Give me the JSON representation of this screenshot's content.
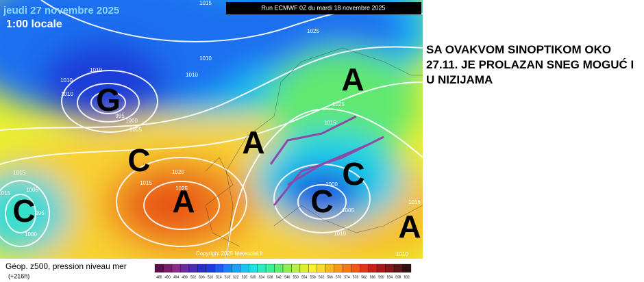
{
  "header": {
    "date": "jeudi 27 novembre 2025",
    "time": "1:00 locale",
    "run": "Run ECMWF 0Z du mardi 18 novembre 2025"
  },
  "note": "SA OVAKVOM SINOPTIKOM OKO 27.11. JE PROLAZAN SNEG MOGUĆ I U NIZIJAMA",
  "centers": [
    "G",
    "C",
    "A",
    "A",
    "C",
    "C",
    "A",
    "C",
    "A"
  ],
  "isobars": [
    "1010",
    "1010",
    "1010",
    "1010",
    "1010",
    "995",
    "1000",
    "1005",
    "1015",
    "1020",
    "1025",
    "1015",
    "1025",
    "1025",
    "1015",
    "1000",
    "1005",
    "1010",
    "1005",
    "995",
    "1000",
    "1015",
    "1015",
    "1010",
    "1015"
  ],
  "copyright": "Copyright 2025 Meteociel.fr",
  "legend": {
    "title": "Géop. z500, pression niveau mer",
    "lead": "(+216h)",
    "labels": [
      486,
      490,
      494,
      498,
      502,
      506,
      510,
      514,
      518,
      522,
      526,
      530,
      534,
      538,
      542,
      546,
      550,
      554,
      558,
      562,
      566,
      570,
      574,
      578,
      582,
      586,
      590,
      594,
      598,
      602
    ],
    "colors": [
      "#5a0f4a",
      "#7a1c6e",
      "#8a2c8a",
      "#6a2c9a",
      "#4a2cb0",
      "#2c2cc8",
      "#1c3ce0",
      "#1c5cf0",
      "#1c80f8",
      "#1ca0f8",
      "#1cc4f4",
      "#1ce0e8",
      "#2cecc0",
      "#3cf098",
      "#5cf070",
      "#8cf050",
      "#b4f040",
      "#dcf030",
      "#f8f030",
      "#f8d828",
      "#f8b820",
      "#f89818",
      "#f87818",
      "#f05818",
      "#e03818",
      "#c82018",
      "#a81818",
      "#801818",
      "#581818",
      "#301010"
    ]
  }
}
